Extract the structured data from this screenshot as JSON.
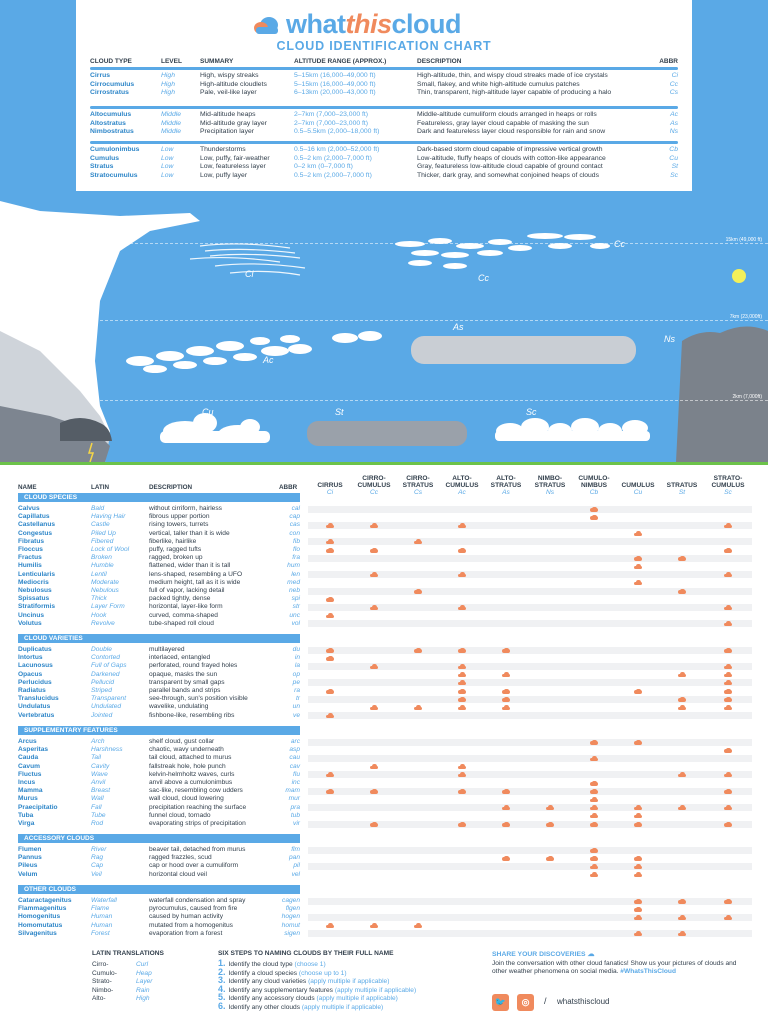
{
  "brand": {
    "what": "what",
    "this": "this",
    "cloud": "cloud"
  },
  "subtitle": "CLOUD IDENTIFICATION CHART",
  "type_table": {
    "headers": {
      "type": "CLOUD TYPE",
      "level": "LEVEL",
      "summary": "SUMMARY",
      "altitude": "ALTITUDE RANGE (APPROX.)",
      "description": "DESCRIPTION",
      "abbr": "ABBR"
    },
    "groups": [
      [
        {
          "name": "Cirrus",
          "level": "High",
          "summary": "High, wispy streaks",
          "alt": "5–15km (16,000–49,000 ft)",
          "desc": "High-altitude, thin, and wispy cloud streaks made of ice crystals",
          "abbr": "Ci"
        },
        {
          "name": "Cirrocumulus",
          "level": "High",
          "summary": "High-altitude cloudlets",
          "alt": "5–15km (16,000–49,000 ft)",
          "desc": "Small, flakey, and white high-altitude cumulus patches",
          "abbr": "Cc"
        },
        {
          "name": "Cirrostratus",
          "level": "High",
          "summary": "Pale, veil-like layer",
          "alt": "6–13km (20,000–43,000 ft)",
          "desc": "Thin, transparent, high-altitude layer capable of producing a halo",
          "abbr": "Cs"
        }
      ],
      [
        {
          "name": "Altocumulus",
          "level": "Middle",
          "summary": "Mid-altitude heaps",
          "alt": "2–7km (7,000–23,000 ft)",
          "desc": "Middle-altitude cumuliform clouds arranged in heaps or rolls",
          "abbr": "Ac"
        },
        {
          "name": "Altostratus",
          "level": "Middle",
          "summary": "Mid-altitude gray layer",
          "alt": "2–7km (7,000–23,000 ft)",
          "desc": "Featureless, gray layer cloud capable of masking the sun",
          "abbr": "As"
        },
        {
          "name": "Nimbostratus",
          "level": "Middle",
          "summary": "Precipitation layer",
          "alt": "0.5–5.5km (2,000–18,000 ft)",
          "desc": "Dark and featureless layer cloud responsible for rain and snow",
          "abbr": "Ns"
        }
      ],
      [
        {
          "name": "Cumulonimbus",
          "level": "Low",
          "summary": "Thunderstorms",
          "alt": "0.5–16 km (2,000–52,000 ft)",
          "desc": "Dark-based storm cloud capable of impressive vertical growth",
          "abbr": "Cb"
        },
        {
          "name": "Cumulus",
          "level": "Low",
          "summary": "Low, puffy, fair-weather",
          "alt": "0.5–2 km (2,000–7,000 ft)",
          "desc": "Low-altitude, fluffy heaps of clouds with cotton-like appearance",
          "abbr": "Cu"
        },
        {
          "name": "Stratus",
          "level": "Low",
          "summary": "Low, featureless layer",
          "alt": "0–2 km (0–7,000 ft)",
          "desc": "Gray, featureless low-altitude cloud capable of ground contact",
          "abbr": "St"
        },
        {
          "name": "Stratocumulus",
          "level": "Low",
          "summary": "Low, puffy layer",
          "alt": "0.5–2 km (2,000–7,000 ft)",
          "desc": "Thicker, dark gray, and somewhat conjoined heaps of clouds",
          "abbr": "Sc"
        }
      ]
    ]
  },
  "sky": {
    "altitudes": [
      "15km (49,000 ft)",
      "7km (23,000ft)",
      "2km (7,000ft)"
    ],
    "labels": [
      "Cc",
      "Ci",
      "Cc",
      "Cb",
      "As",
      "Ns",
      "Ac",
      "Cu",
      "St",
      "Sc"
    ]
  },
  "matrix": {
    "headers": {
      "name": "NAME",
      "latin": "LATIN",
      "description": "DESCRIPTION",
      "abbr": "ABBR"
    },
    "columns": [
      {
        "label": [
          "CIRRUS"
        ],
        "abbr": "Ci"
      },
      {
        "label": [
          "CIRRO-",
          "CUMULUS"
        ],
        "abbr": "Cc"
      },
      {
        "label": [
          "CIRRO-",
          "STRATUS"
        ],
        "abbr": "Cs"
      },
      {
        "label": [
          "ALTO-",
          "CUMULUS"
        ],
        "abbr": "Ac"
      },
      {
        "label": [
          "ALTO-",
          "STRATUS"
        ],
        "abbr": "As"
      },
      {
        "label": [
          "NIMBO-",
          "STRATUS"
        ],
        "abbr": "Ns"
      },
      {
        "label": [
          "CUMULO-",
          "NIMBUS"
        ],
        "abbr": "Cb"
      },
      {
        "label": [
          "CUMULUS"
        ],
        "abbr": "Cu"
      },
      {
        "label": [
          "STRATUS"
        ],
        "abbr": "St"
      },
      {
        "label": [
          "STRATO-",
          "CUMULUS"
        ],
        "abbr": "Sc"
      }
    ],
    "sections": [
      {
        "title": "CLOUD SPECIES",
        "rows": [
          {
            "name": "Calvus",
            "latin": "Bald",
            "desc": "without cirriform, hairless",
            "abbr": "cal",
            "marks": [
              6
            ]
          },
          {
            "name": "Capillatus",
            "latin": "Having Hair",
            "desc": "fibrous upper portion",
            "abbr": "cap",
            "marks": [
              6
            ]
          },
          {
            "name": "Castellanus",
            "latin": "Castle",
            "desc": "rising towers, turrets",
            "abbr": "cas",
            "marks": [
              0,
              1,
              3,
              9
            ]
          },
          {
            "name": "Congestus",
            "latin": "Piled Up",
            "desc": "vertical, taller than it is wide",
            "abbr": "con",
            "marks": [
              7
            ]
          },
          {
            "name": "Fibratus",
            "latin": "Fibered",
            "desc": "fiberlike, hairlike",
            "abbr": "fib",
            "marks": [
              0,
              2
            ]
          },
          {
            "name": "Floccus",
            "latin": "Lock of Wool",
            "desc": "puffy, ragged tufts",
            "abbr": "flo",
            "marks": [
              0,
              1,
              3,
              9
            ]
          },
          {
            "name": "Fractus",
            "latin": "Broken",
            "desc": "ragged, broken up",
            "abbr": "fra",
            "marks": [
              7,
              8
            ]
          },
          {
            "name": "Humilis",
            "latin": "Humble",
            "desc": "flattened, wider than it is tall",
            "abbr": "hum",
            "marks": [
              7
            ]
          },
          {
            "name": "Lenticularis",
            "latin": "Lentil",
            "desc": "lens-shaped, resembling a UFO",
            "abbr": "len",
            "marks": [
              1,
              3,
              9
            ]
          },
          {
            "name": "Mediocris",
            "latin": "Moderate",
            "desc": "medium height, tall as it is wide",
            "abbr": "med",
            "marks": [
              7
            ]
          },
          {
            "name": "Nebulosus",
            "latin": "Nebulous",
            "desc": "full of vapor, lacking detail",
            "abbr": "neb",
            "marks": [
              2,
              8
            ]
          },
          {
            "name": "Spissatus",
            "latin": "Thick",
            "desc": "packed tightly, dense",
            "abbr": "spi",
            "marks": [
              0
            ]
          },
          {
            "name": "Stratiformis",
            "latin": "Layer Form",
            "desc": "horizontal, layer-like form",
            "abbr": "str",
            "marks": [
              1,
              3,
              9
            ]
          },
          {
            "name": "Uncinus",
            "latin": "Hook",
            "desc": "curved, comma-shaped",
            "abbr": "unc",
            "marks": [
              0
            ]
          },
          {
            "name": "Volutus",
            "latin": "Revolve",
            "desc": "tube-shaped roll cloud",
            "abbr": "vol",
            "marks": [
              9
            ]
          }
        ]
      },
      {
        "title": "CLOUD VARIETIES",
        "rows": [
          {
            "name": "Duplicatus",
            "latin": "Double",
            "desc": "multilayered",
            "abbr": "du",
            "marks": [
              0,
              2,
              3,
              4,
              9
            ]
          },
          {
            "name": "Intortus",
            "latin": "Contorted",
            "desc": "interlaced, entangled",
            "abbr": "in",
            "marks": [
              0
            ]
          },
          {
            "name": "Lacunosus",
            "latin": "Full of Gaps",
            "desc": "perforated, round frayed holes",
            "abbr": "la",
            "marks": [
              1,
              3,
              9
            ]
          },
          {
            "name": "Opacus",
            "latin": "Darkened",
            "desc": "opaque, masks the sun",
            "abbr": "op",
            "marks": [
              3,
              4,
              8,
              9
            ]
          },
          {
            "name": "Perlucidus",
            "latin": "Pellucid",
            "desc": "transparent by small gaps",
            "abbr": "pe",
            "marks": [
              3,
              9
            ]
          },
          {
            "name": "Radiatus",
            "latin": "Striped",
            "desc": "parallel bands and strips",
            "abbr": "ra",
            "marks": [
              0,
              3,
              4,
              7,
              9
            ]
          },
          {
            "name": "Translucidus",
            "latin": "Transparent",
            "desc": "see-through, sun's position visible",
            "abbr": "tr",
            "marks": [
              3,
              4,
              8,
              9
            ]
          },
          {
            "name": "Undulatus",
            "latin": "Undulated",
            "desc": "wavelike, undulating",
            "abbr": "un",
            "marks": [
              1,
              2,
              3,
              4,
              8,
              9
            ]
          },
          {
            "name": "Vertebratus",
            "latin": "Jointed",
            "desc": "fishbone-like, resembling ribs",
            "abbr": "ve",
            "marks": [
              0
            ]
          }
        ]
      },
      {
        "title": "SUPPLEMENTARY FEATURES",
        "rows": [
          {
            "name": "Arcus",
            "latin": "Arch",
            "desc": "shelf cloud, gust collar",
            "abbr": "arc",
            "marks": [
              6,
              7
            ]
          },
          {
            "name": "Asperitas",
            "latin": "Harshness",
            "desc": "chaotic, wavy underneath",
            "abbr": "asp",
            "marks": [
              9
            ]
          },
          {
            "name": "Cauda",
            "latin": "Tail",
            "desc": "tail cloud, attached to murus",
            "abbr": "cau",
            "marks": [
              6
            ]
          },
          {
            "name": "Cavum",
            "latin": "Cavity",
            "desc": "fallstreak hole, hole punch",
            "abbr": "cav",
            "marks": [
              1,
              3
            ]
          },
          {
            "name": "Fluctus",
            "latin": "Wave",
            "desc": "kelvin-helmholtz waves, curls",
            "abbr": "flu",
            "marks": [
              0,
              3,
              8,
              9
            ]
          },
          {
            "name": "Incus",
            "latin": "Anvil",
            "desc": "anvil above a cumulonimbus",
            "abbr": "inc",
            "marks": [
              6
            ]
          },
          {
            "name": "Mamma",
            "latin": "Breast",
            "desc": "sac-like, resembling cow udders",
            "abbr": "mam",
            "marks": [
              0,
              1,
              3,
              4,
              6,
              9
            ]
          },
          {
            "name": "Murus",
            "latin": "Wall",
            "desc": "wall cloud, cloud lowering",
            "abbr": "mur",
            "marks": [
              6
            ]
          },
          {
            "name": "Praecipitatio",
            "latin": "Fall",
            "desc": "precipitation reaching the surface",
            "abbr": "pra",
            "marks": [
              4,
              5,
              6,
              7,
              8,
              9
            ]
          },
          {
            "name": "Tuba",
            "latin": "Tube",
            "desc": "funnel cloud, tornado",
            "abbr": "tub",
            "marks": [
              6,
              7
            ]
          },
          {
            "name": "Virga",
            "latin": "Rod",
            "desc": "evaporating strips of precipitation",
            "abbr": "vir",
            "marks": [
              1,
              3,
              4,
              5,
              6,
              7,
              9
            ]
          }
        ]
      },
      {
        "title": "ACCESSORY CLOUDS",
        "rows": [
          {
            "name": "Flumen",
            "latin": "River",
            "desc": "beaver tail, detached from murus",
            "abbr": "flm",
            "marks": [
              6
            ]
          },
          {
            "name": "Pannus",
            "latin": "Rag",
            "desc": "ragged frazzles, scud",
            "abbr": "pan",
            "marks": [
              4,
              5,
              6,
              7
            ]
          },
          {
            "name": "Pileus",
            "latin": "Cap",
            "desc": "cap or hood over a cumuliform",
            "abbr": "pil",
            "marks": [
              6,
              7
            ]
          },
          {
            "name": "Velum",
            "latin": "Veil",
            "desc": "horizontal cloud veil",
            "abbr": "vel",
            "marks": [
              6,
              7
            ]
          }
        ]
      },
      {
        "title": "OTHER CLOUDS",
        "rows": [
          {
            "name": "Cataractagenitus",
            "latin": "Waterfall",
            "desc": "waterfall condensation and spray",
            "abbr": "cagen",
            "marks": [
              7,
              8,
              9
            ]
          },
          {
            "name": "Flammagenitus",
            "latin": "Flame",
            "desc": "pyrocumulus, caused from fire",
            "abbr": "flgen",
            "marks": [
              7
            ]
          },
          {
            "name": "Homogenitus",
            "latin": "Human",
            "desc": "caused by human activity",
            "abbr": "hogen",
            "marks": [
              7,
              8,
              9
            ]
          },
          {
            "name": "Homomutatus",
            "latin": "Human",
            "desc": "mutated from a homogenitus",
            "abbr": "homut",
            "marks": [
              0,
              1,
              2
            ]
          },
          {
            "name": "Silvagenitus",
            "latin": "Forest",
            "desc": "evaporation from a forest",
            "abbr": "sigen",
            "marks": [
              7,
              8
            ]
          }
        ]
      }
    ]
  },
  "latin_translations": {
    "title": "LATIN TRANSLATIONS",
    "items": [
      {
        "k": "Cirro-",
        "v": "Curl"
      },
      {
        "k": "Cumulo-",
        "v": "Heap"
      },
      {
        "k": "Strato-",
        "v": "Layer"
      },
      {
        "k": "Nimbo-",
        "v": "Rain"
      },
      {
        "k": "Alto-",
        "v": "High"
      }
    ]
  },
  "steps": {
    "title": "SIX STEPS TO NAMING CLOUDS BY THEIR FULL NAME",
    "items": [
      {
        "n": "1.",
        "t": "Identify the cloud type ",
        "h": "(choose 1)"
      },
      {
        "n": "2.",
        "t": "Identify a cloud species ",
        "h": "(choose up to 1)"
      },
      {
        "n": "3.",
        "t": "Identify any cloud varieties ",
        "h": "(apply multiple if applicable)"
      },
      {
        "n": "4.",
        "t": "Identify any supplementary features ",
        "h": "(apply multiple if applicable)"
      },
      {
        "n": "5.",
        "t": "Identify any accessory clouds ",
        "h": "(apply multiple if applicable)"
      },
      {
        "n": "6.",
        "t": "Identify any other clouds ",
        "h": "(apply multiple if applicable)"
      }
    ]
  },
  "share": {
    "title": "SHARE YOUR DISCOVERIES",
    "text": "Join the conversation with other cloud fanatics! Show us your pictures of clouds and other weather phenomena on social media. ",
    "tag": "#WhatsThisCloud",
    "slash": "/",
    "handle": "whatsthiscloud"
  },
  "colors": {
    "accent": "#5aa9e6",
    "mark": "#f08a5d",
    "sky": "#5aa9e6",
    "grass": "#6cc24a"
  }
}
